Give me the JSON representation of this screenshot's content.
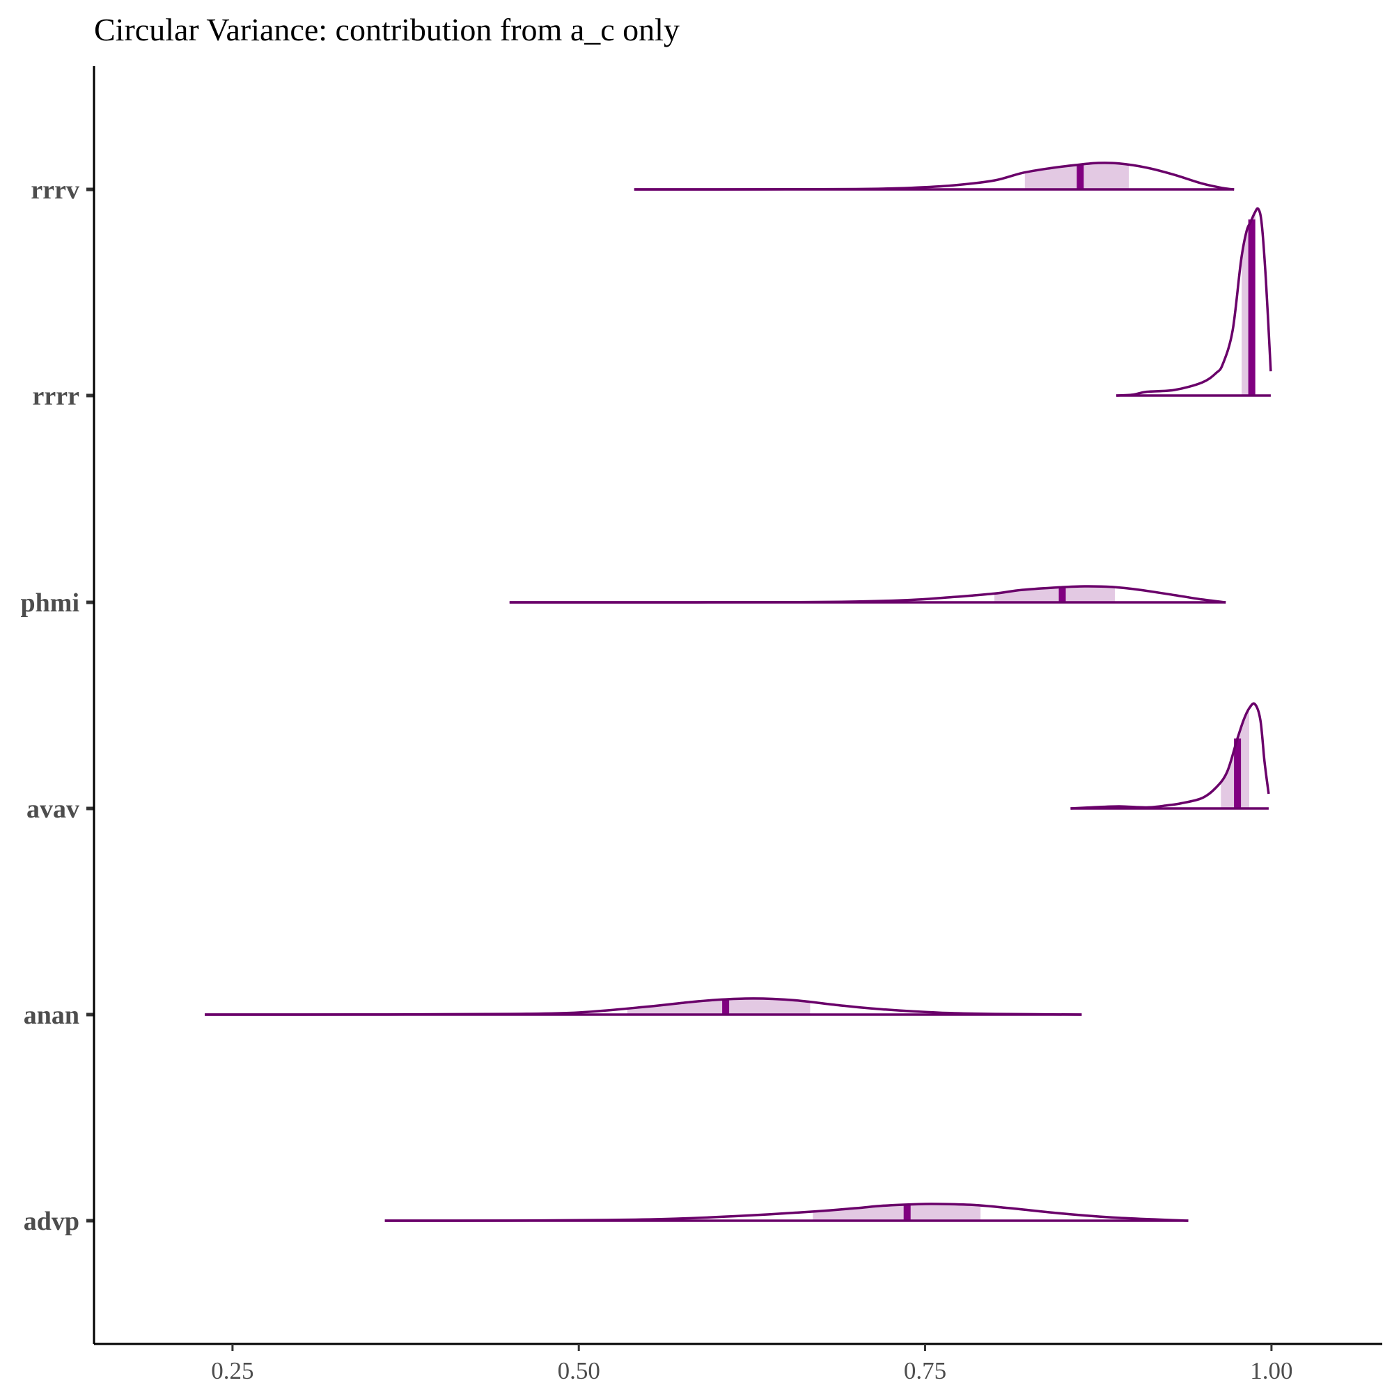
{
  "chart_data": {
    "type": "density-ridges",
    "title": "Circular Variance: contribution from a_c only",
    "xlabel": "",
    "ylabel": "",
    "xlim": [
      0.15,
      1.08
    ],
    "x_ticks": [
      "0.25",
      "0.50",
      "0.75",
      "1.00"
    ],
    "x_tick_values": [
      0.25,
      0.5,
      0.75,
      1.0
    ],
    "grid": false,
    "colors": {
      "line": "#6a006a",
      "interval": "#e3c9e3",
      "median": "#800080"
    },
    "series": [
      {
        "name": "rrrv",
        "range": [
          0.54,
          0.973
        ],
        "median": 0.862,
        "interval": [
          0.822,
          0.897
        ],
        "density": [
          [
            0.54,
            0
          ],
          [
            0.6,
            0.001
          ],
          [
            0.65,
            0.004
          ],
          [
            0.7,
            0.012
          ],
          [
            0.74,
            0.06
          ],
          [
            0.77,
            0.15
          ],
          [
            0.8,
            0.34
          ],
          [
            0.82,
            0.62
          ],
          [
            0.84,
            0.8
          ],
          [
            0.86,
            0.93
          ],
          [
            0.875,
            1.0
          ],
          [
            0.89,
            0.98
          ],
          [
            0.91,
            0.82
          ],
          [
            0.93,
            0.55
          ],
          [
            0.95,
            0.22
          ],
          [
            0.965,
            0.05
          ],
          [
            0.973,
            0
          ]
        ]
      },
      {
        "name": "rrrr",
        "range": [
          0.888,
          0.9995
        ],
        "median": 0.9858,
        "interval": [
          0.9785,
          0.9885
        ],
        "density": [
          [
            0.888,
            0
          ],
          [
            0.9,
            0.005
          ],
          [
            0.91,
            0.02
          ],
          [
            0.93,
            0.03
          ],
          [
            0.95,
            0.07
          ],
          [
            0.96,
            0.12
          ],
          [
            0.965,
            0.17
          ],
          [
            0.972,
            0.35
          ],
          [
            0.978,
            0.72
          ],
          [
            0.982,
            0.88
          ],
          [
            0.985,
            0.93
          ],
          [
            0.988,
            0.98
          ],
          [
            0.9905,
            1.0
          ],
          [
            0.993,
            0.92
          ],
          [
            0.996,
            0.62
          ],
          [
            0.9995,
            0.13
          ]
        ]
      },
      {
        "name": "phmi",
        "range": [
          0.45,
          0.967
        ],
        "median": 0.849,
        "interval": [
          0.8,
          0.887
        ],
        "density": [
          [
            0.45,
            0
          ],
          [
            0.55,
            0.001
          ],
          [
            0.65,
            0.01
          ],
          [
            0.7,
            0.05
          ],
          [
            0.74,
            0.15
          ],
          [
            0.77,
            0.33
          ],
          [
            0.8,
            0.55
          ],
          [
            0.82,
            0.78
          ],
          [
            0.845,
            0.93
          ],
          [
            0.865,
            1.0
          ],
          [
            0.885,
            0.96
          ],
          [
            0.905,
            0.78
          ],
          [
            0.93,
            0.45
          ],
          [
            0.95,
            0.18
          ],
          [
            0.967,
            0
          ]
        ]
      },
      {
        "name": "avav",
        "range": [
          0.855,
          0.998
        ],
        "median": 0.9755,
        "interval": [
          0.9635,
          0.984
        ],
        "density": [
          [
            0.855,
            0
          ],
          [
            0.87,
            0.01
          ],
          [
            0.89,
            0.02
          ],
          [
            0.91,
            0.01
          ],
          [
            0.925,
            0.03
          ],
          [
            0.935,
            0.05
          ],
          [
            0.95,
            0.1
          ],
          [
            0.96,
            0.2
          ],
          [
            0.968,
            0.35
          ],
          [
            0.975,
            0.65
          ],
          [
            0.98,
            0.85
          ],
          [
            0.984,
            0.96
          ],
          [
            0.988,
            1.0
          ],
          [
            0.992,
            0.85
          ],
          [
            0.995,
            0.45
          ],
          [
            0.998,
            0.14
          ]
        ]
      },
      {
        "name": "anan",
        "range": [
          0.23,
          0.863
        ],
        "median": 0.606,
        "interval": [
          0.535,
          0.667
        ],
        "density": [
          [
            0.23,
            0
          ],
          [
            0.35,
            0.005
          ],
          [
            0.45,
            0.04
          ],
          [
            0.5,
            0.13
          ],
          [
            0.55,
            0.5
          ],
          [
            0.58,
            0.78
          ],
          [
            0.6,
            0.92
          ],
          [
            0.62,
            1.0
          ],
          [
            0.64,
            0.98
          ],
          [
            0.66,
            0.86
          ],
          [
            0.69,
            0.56
          ],
          [
            0.72,
            0.32
          ],
          [
            0.76,
            0.12
          ],
          [
            0.8,
            0.04
          ],
          [
            0.863,
            0
          ]
        ]
      },
      {
        "name": "advp",
        "range": [
          0.36,
          0.94
        ],
        "median": 0.737,
        "interval": [
          0.669,
          0.79
        ],
        "density": [
          [
            0.36,
            0
          ],
          [
            0.45,
            0.005
          ],
          [
            0.52,
            0.04
          ],
          [
            0.57,
            0.12
          ],
          [
            0.62,
            0.3
          ],
          [
            0.67,
            0.55
          ],
          [
            0.7,
            0.75
          ],
          [
            0.72,
            0.9
          ],
          [
            0.745,
            0.99
          ],
          [
            0.76,
            1.0
          ],
          [
            0.785,
            0.94
          ],
          [
            0.81,
            0.76
          ],
          [
            0.85,
            0.42
          ],
          [
            0.89,
            0.17
          ],
          [
            0.94,
            0
          ]
        ]
      }
    ]
  }
}
